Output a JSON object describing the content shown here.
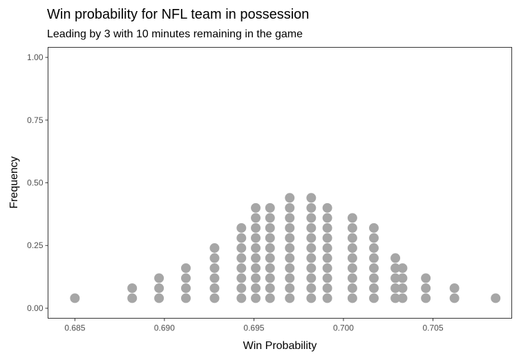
{
  "chart_data": {
    "type": "scatter",
    "subtype": "dotplot",
    "title": "Win probability for NFL team in possession",
    "subtitle": "Leading by 3 with 10 minutes remaining in the game",
    "xlabel": "Win Probability",
    "ylabel": "Frequency",
    "xlim": [
      0.6835,
      0.7094
    ],
    "ylim": [
      -0.04,
      1.04
    ],
    "x_ticks": [
      0.685,
      0.69,
      0.695,
      0.7,
      0.705
    ],
    "x_tick_labels": [
      "0.685",
      "0.690",
      "0.695",
      "0.700",
      "0.705"
    ],
    "y_ticks": [
      0.0,
      0.25,
      0.5,
      0.75,
      1.0
    ],
    "y_tick_labels": [
      "0.00",
      "0.25",
      "0.50",
      "0.75",
      "1.00"
    ],
    "grid": false,
    "dot_color": "#a6a6a6",
    "stack_step": 0.04,
    "stacks": [
      {
        "x": 0.685,
        "count": 1
      },
      {
        "x": 0.6882,
        "count": 2
      },
      {
        "x": 0.6897,
        "count": 3
      },
      {
        "x": 0.6912,
        "count": 4
      },
      {
        "x": 0.6928,
        "count": 6
      },
      {
        "x": 0.6943,
        "count": 8
      },
      {
        "x": 0.6951,
        "count": 10
      },
      {
        "x": 0.6959,
        "count": 10
      },
      {
        "x": 0.697,
        "count": 11
      },
      {
        "x": 0.6982,
        "count": 11
      },
      {
        "x": 0.6991,
        "count": 10
      },
      {
        "x": 0.7005,
        "count": 9
      },
      {
        "x": 0.7017,
        "count": 8
      },
      {
        "x": 0.7029,
        "count": 5
      },
      {
        "x": 0.7033,
        "count": 4
      },
      {
        "x": 0.7046,
        "count": 3
      },
      {
        "x": 0.7062,
        "count": 2
      },
      {
        "x": 0.7085,
        "count": 1
      }
    ]
  }
}
